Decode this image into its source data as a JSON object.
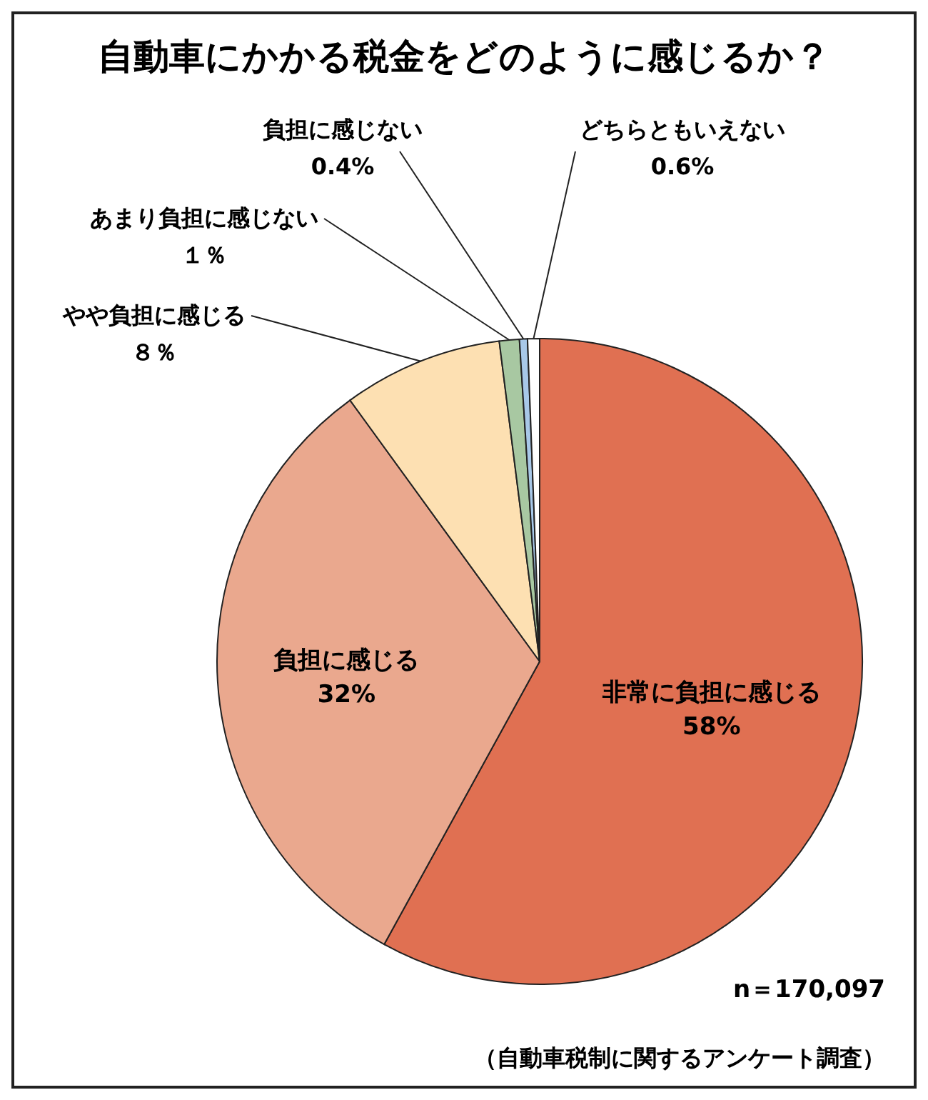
{
  "chart_data": {
    "type": "pie",
    "title": "自動車にかかる税金をどのように感じるか？",
    "categories": [
      "非常に負担に感じる",
      "負担に感じる",
      "やや負担に感じる",
      "あまり負担に感じない",
      "負担に感じない",
      "どちらともいえない"
    ],
    "values": [
      58,
      32,
      8,
      1,
      0.4,
      0.6
    ],
    "value_labels": [
      "58%",
      "32%",
      "８％",
      "１％",
      "0.4%",
      "0.6%"
    ],
    "colors": [
      "#e07052",
      "#eaa88e",
      "#fde0b2",
      "#a8c8a2",
      "#a8c8e8",
      "#ffffff"
    ],
    "annotations": [
      "n＝170,097",
      "（自動車税制に関するアンケート調査）"
    ]
  }
}
